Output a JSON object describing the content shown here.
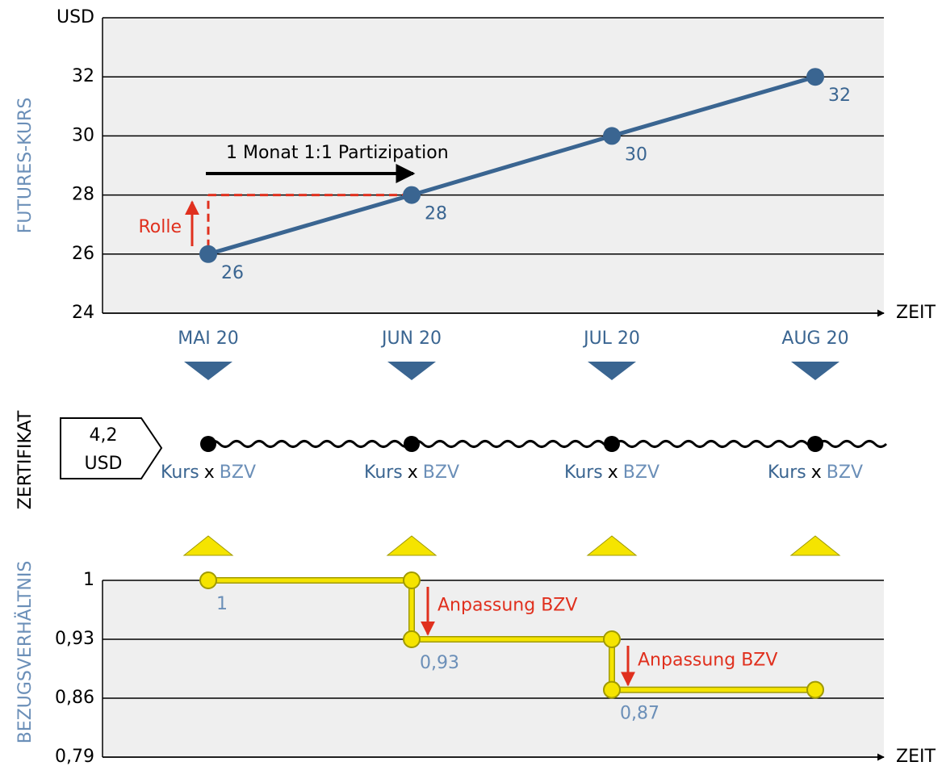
{
  "chart_data": [
    {
      "type": "line",
      "y_label": "FUTURES-KURS",
      "y_unit": "USD",
      "x_label": "ZEIT",
      "categories": [
        "MAI 20",
        "JUN 20",
        "JUL 20",
        "AUG 20"
      ],
      "values": [
        26,
        28,
        30,
        32
      ],
      "color": "#3a6591",
      "ylim": [
        24,
        34
      ],
      "yticks": [
        24,
        26,
        28,
        30,
        32
      ],
      "grid": true,
      "annotations": [
        "1 Monat 1:1 Partizipation",
        "Rolle"
      ]
    },
    {
      "type": "step",
      "y_label": "BEZUGSVERHÄLTNIS",
      "x_label": "ZEIT",
      "values": [
        1,
        0.93,
        0.87,
        0.87
      ],
      "value_labels": [
        "1",
        "0,93",
        "0,87",
        null
      ],
      "color": "#f5e400",
      "ylim": [
        0.79,
        1
      ],
      "yticks": [
        {
          "value": 0.79,
          "label": "0,79"
        },
        {
          "value": 0.86,
          "label": "0,86"
        },
        {
          "value": 0.93,
          "label": "0,93"
        },
        1
      ],
      "grid": true,
      "annotations": [
        "Anpassung BZV",
        "Anpassung BZV"
      ]
    }
  ],
  "certificate": {
    "axis_label": "ZERTIFIKAT",
    "price": "4,2",
    "unit": "USD",
    "formula": [
      "Kurs",
      "x",
      "BZV"
    ]
  }
}
